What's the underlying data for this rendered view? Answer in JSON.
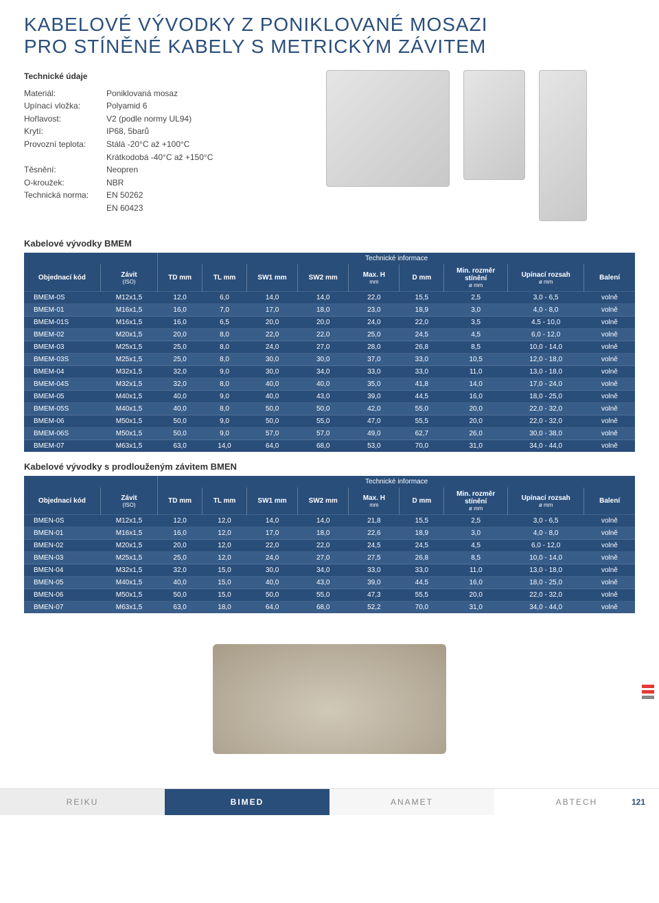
{
  "colors": {
    "brand_blue": "#2a4e7a",
    "row_alt": "#385d89",
    "title_color": "#2a4e7a",
    "text": "#333333",
    "footer_gray": "#ececec",
    "accent_red": "#e53935"
  },
  "title": {
    "line1": "KABELOVÉ VÝVODKY Z PONIKLOVANÉ MOSAZI",
    "line2": "PRO STÍNĚNÉ KABELY S METRICKÝM ZÁVITEM"
  },
  "specs": {
    "heading": "Technické údaje",
    "rows": [
      {
        "label": "Materiál:",
        "value": "Poniklovaná mosaz"
      },
      {
        "label": "Upínací vložka:",
        "value": "Polyamid 6"
      },
      {
        "label": "Hořlavost:",
        "value": "V2 (podle normy UL94)"
      },
      {
        "label": "Krytí:",
        "value": "IP68, 5barů"
      },
      {
        "label": "Provozní teplota:",
        "value": "Stálá -20°C až +100°C"
      },
      {
        "label": "",
        "value": "Krátkodobá -40°C až +150°C"
      },
      {
        "label": "Těsnění:",
        "value": "Neopren"
      },
      {
        "label": "O-kroužek:",
        "value": "NBR"
      },
      {
        "label": "Technická norma:",
        "value": "EN 50262"
      },
      {
        "label": "",
        "value": "EN 60423"
      }
    ]
  },
  "table1": {
    "heading": "Kabelové vývodky BMEM",
    "info_label": "Technické informace",
    "columns": [
      "Objednací kód",
      "Závit (ISO)",
      "TD mm",
      "TL mm",
      "SW1 mm",
      "SW2 mm",
      "Max. H mm",
      "D mm",
      "Min. rozměr stínění ø mm",
      "Upínací rozsah ø mm",
      "Balení"
    ],
    "rows": [
      [
        "BMEM-0S",
        "M12x1,5",
        "12,0",
        "6,0",
        "14,0",
        "14,0",
        "22,0",
        "15,5",
        "2,5",
        "3,0 - 6,5",
        "volně"
      ],
      [
        "BMEM-01",
        "M16x1,5",
        "16,0",
        "7,0",
        "17,0",
        "18,0",
        "23,0",
        "18,9",
        "3,0",
        "4,0 - 8,0",
        "volně"
      ],
      [
        "BMEM-01S",
        "M16x1,5",
        "16,0",
        "6,5",
        "20,0",
        "20,0",
        "24,0",
        "22,0",
        "3,5",
        "4,5 - 10,0",
        "volně"
      ],
      [
        "BMEM-02",
        "M20x1,5",
        "20,0",
        "8,0",
        "22,0",
        "22,0",
        "25,0",
        "24,5",
        "4,5",
        "6,0 - 12,0",
        "volně"
      ],
      [
        "BMEM-03",
        "M25x1,5",
        "25,0",
        "8,0",
        "24,0",
        "27,0",
        "28,0",
        "26,8",
        "8,5",
        "10,0 - 14,0",
        "volně"
      ],
      [
        "BMEM-03S",
        "M25x1,5",
        "25,0",
        "8,0",
        "30,0",
        "30,0",
        "37,0",
        "33,0",
        "10,5",
        "12,0 - 18,0",
        "volně"
      ],
      [
        "BMEM-04",
        "M32x1,5",
        "32,0",
        "9,0",
        "30,0",
        "34,0",
        "33,0",
        "33,0",
        "11,0",
        "13,0 - 18,0",
        "volně"
      ],
      [
        "BMEM-04S",
        "M32x1,5",
        "32,0",
        "8,0",
        "40,0",
        "40,0",
        "35,0",
        "41,8",
        "14,0",
        "17,0 - 24,0",
        "volně"
      ],
      [
        "BMEM-05",
        "M40x1,5",
        "40,0",
        "9,0",
        "40,0",
        "43,0",
        "39,0",
        "44,5",
        "16,0",
        "18,0 - 25,0",
        "volně"
      ],
      [
        "BMEM-05S",
        "M40x1,5",
        "40,0",
        "8,0",
        "50,0",
        "50,0",
        "42,0",
        "55,0",
        "20,0",
        "22,0 - 32,0",
        "volně"
      ],
      [
        "BMEM-06",
        "M50x1,5",
        "50,0",
        "9,0",
        "50,0",
        "55,0",
        "47,0",
        "55,5",
        "20,0",
        "22,0 - 32,0",
        "volně"
      ],
      [
        "BMEM-06S",
        "M50x1,5",
        "50,0",
        "9,0",
        "57,0",
        "57,0",
        "49,0",
        "62,7",
        "26,0",
        "30,0 - 38,0",
        "volně"
      ],
      [
        "BMEM-07",
        "M63x1,5",
        "63,0",
        "14,0",
        "64,0",
        "68,0",
        "53,0",
        "70,0",
        "31,0",
        "34,0 - 44,0",
        "volně"
      ]
    ]
  },
  "table2": {
    "heading": "Kabelové vývodky s prodlouženým závitem BMEN",
    "info_label": "Technické informace",
    "columns": [
      "Objednací kód",
      "Závit (ISO)",
      "TD mm",
      "TL mm",
      "SW1 mm",
      "SW2 mm",
      "Max. H mm",
      "D mm",
      "Min. rozměr stínění ø mm",
      "Upínací rozsah ø mm",
      "Balení"
    ],
    "rows": [
      [
        "BMEN-0S",
        "M12x1,5",
        "12,0",
        "12,0",
        "14,0",
        "14,0",
        "21,8",
        "15,5",
        "2,5",
        "3,0 - 6,5",
        "volně"
      ],
      [
        "BMEN-01",
        "M16x1,5",
        "16,0",
        "12,0",
        "17,0",
        "18,0",
        "22,6",
        "18,9",
        "3,0",
        "4,0 - 8,0",
        "volně"
      ],
      [
        "BMEN-02",
        "M20x1,5",
        "20,0",
        "12,0",
        "22,0",
        "22,0",
        "24,5",
        "24,5",
        "4,5",
        "6,0 - 12,0",
        "volně"
      ],
      [
        "BMEN-03",
        "M25x1,5",
        "25,0",
        "12,0",
        "24,0",
        "27,0",
        "27,5",
        "26,8",
        "8,5",
        "10,0 - 14,0",
        "volně"
      ],
      [
        "BMEN-04",
        "M32x1,5",
        "32,0",
        "15,0",
        "30,0",
        "34,0",
        "33,0",
        "33,0",
        "11,0",
        "13,0 - 18,0",
        "volně"
      ],
      [
        "BMEN-05",
        "M40x1,5",
        "40,0",
        "15,0",
        "40,0",
        "43,0",
        "39,0",
        "44,5",
        "16,0",
        "18,0 - 25,0",
        "volně"
      ],
      [
        "BMEN-06",
        "M50x1,5",
        "50,0",
        "15,0",
        "50,0",
        "55,0",
        "47,3",
        "55,5",
        "20,0",
        "22,0 - 32,0",
        "volně"
      ],
      [
        "BMEN-07",
        "M63x1,5",
        "63,0",
        "18,0",
        "64,0",
        "68,0",
        "52,2",
        "70,0",
        "31,0",
        "34,0 - 44,0",
        "volně"
      ]
    ]
  },
  "footer": {
    "reiku": "REIKU",
    "bimed": "BIMED",
    "anamet": "ANAMET",
    "abtech": "ABTECH",
    "page": "121"
  },
  "col_widths_pct": [
    12,
    9,
    7,
    7,
    8,
    8,
    8,
    7,
    10,
    12,
    8
  ]
}
